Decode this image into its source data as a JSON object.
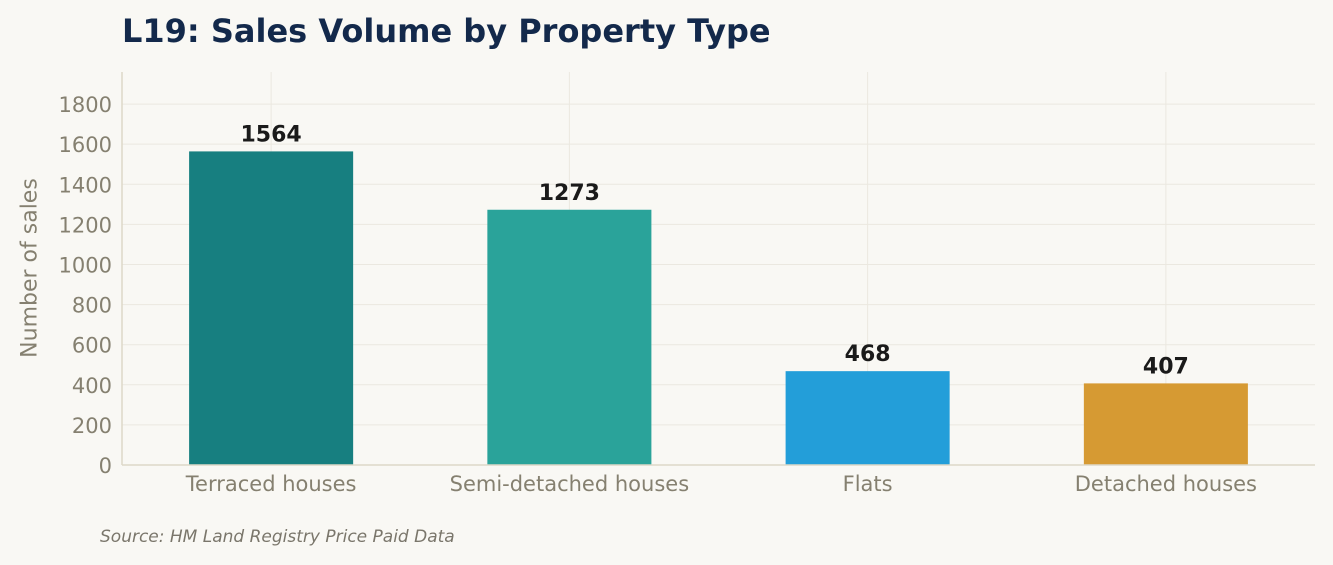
{
  "chart_data": {
    "type": "bar",
    "title": "L19: Sales Volume by Property Type",
    "xlabel": "",
    "ylabel": "Number of sales",
    "categories": [
      "Terraced houses",
      "Semi-detached houses",
      "Flats",
      "Detached houses"
    ],
    "values": [
      1564,
      1273,
      468,
      407
    ],
    "colors": [
      "#177f80",
      "#2aa39a",
      "#239ed9",
      "#d69a33"
    ],
    "ylim": [
      0,
      1960
    ],
    "yticks": [
      0,
      200,
      400,
      600,
      800,
      1000,
      1200,
      1400,
      1600,
      1800
    ],
    "grid": true,
    "data_labels": [
      "1564",
      "1273",
      "468",
      "407"
    ],
    "source": "Source: HM Land Registry Price Paid Data"
  }
}
